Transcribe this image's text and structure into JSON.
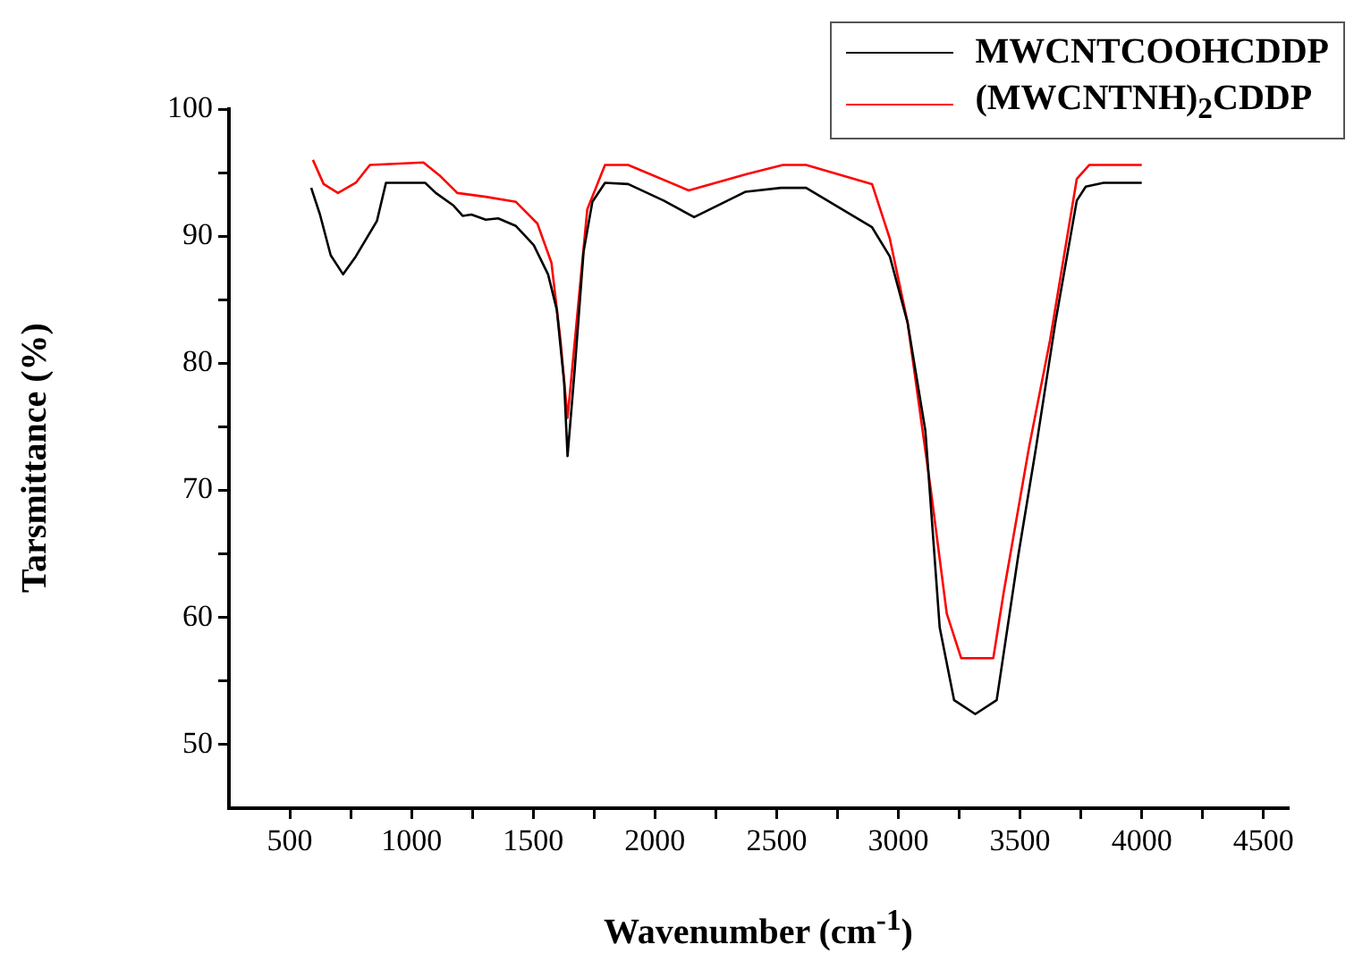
{
  "chart_data": {
    "type": "line",
    "xlabel": "Wavenumber (cm$^{-1}$)",
    "ylabel": "Tarsmittance (%)",
    "series": [
      {
        "name": "MWCNTCOOHCDDP",
        "color": "#000000",
        "x": [
          588,
          624,
          668,
          719,
          771,
          858,
          895,
          1056,
          1100,
          1173,
          1210,
          1246,
          1305,
          1356,
          1429,
          1502,
          1561,
          1597,
          1627,
          1641,
          1670,
          1707,
          1743,
          1795,
          1890,
          2036,
          2161,
          2256,
          2373,
          2518,
          2621,
          2892,
          2965,
          3038,
          3111,
          3170,
          3229,
          3316,
          3404,
          3492,
          3565,
          3645,
          3733,
          3770,
          3843,
          4000
        ],
        "values": [
          93.8,
          91.7,
          88.5,
          87.0,
          88.4,
          91.2,
          94.2,
          94.2,
          93.4,
          92.4,
          91.6,
          91.7,
          91.3,
          91.4,
          90.8,
          89.3,
          87.0,
          84.2,
          78.5,
          72.7,
          79.4,
          88.8,
          92.7,
          94.2,
          94.1,
          92.8,
          91.5,
          92.4,
          93.5,
          93.8,
          93.8,
          90.7,
          88.4,
          83.2,
          74.7,
          59.2,
          53.5,
          52.4,
          53.5,
          64.8,
          73.3,
          83.2,
          92.8,
          93.9,
          94.2,
          94.2
        ]
      },
      {
        "name": "(MWCNTNH)$_{2}$CDDP",
        "color": "#ff0000",
        "x": [
          595,
          639,
          698,
          771,
          829,
          1049,
          1114,
          1188,
          1305,
          1429,
          1517,
          1575,
          1612,
          1641,
          1678,
          1722,
          1795,
          1890,
          2139,
          2380,
          2526,
          2621,
          2892,
          2965,
          3038,
          3133,
          3199,
          3258,
          3390,
          3433,
          3536,
          3623,
          3733,
          3784,
          4000
        ],
        "values": [
          96.0,
          94.1,
          93.4,
          94.2,
          95.6,
          95.8,
          94.8,
          93.4,
          93.1,
          92.7,
          91.0,
          87.9,
          81.8,
          75.7,
          83.2,
          92.1,
          95.6,
          95.6,
          93.6,
          94.9,
          95.6,
          95.6,
          94.1,
          89.8,
          83.2,
          70.1,
          60.3,
          56.8,
          56.8,
          62.0,
          73.3,
          81.8,
          94.5,
          95.6,
          95.6
        ]
      }
    ],
    "xlim": [
      250,
      4600
    ],
    "xticks": [
      500,
      {
        "value": 750,
        "label": null
      },
      1000,
      {
        "value": 1250,
        "label": null
      },
      1500,
      {
        "value": 1750,
        "label": null
      },
      2000,
      {
        "value": 2250,
        "label": null
      },
      2500,
      {
        "value": 2750,
        "label": null
      },
      3000,
      {
        "value": 3250,
        "label": null
      },
      3500,
      {
        "value": 3750,
        "label": null
      },
      4000,
      {
        "value": 4250,
        "label": null
      },
      4500
    ],
    "ylim": [
      45,
      100
    ],
    "yticks": [
      50,
      {
        "value": 55,
        "label": null
      },
      60,
      {
        "value": 65,
        "label": null
      },
      70,
      {
        "value": 75,
        "label": null
      },
      80,
      {
        "value": 85,
        "label": null
      },
      90,
      {
        "value": 95,
        "label": null
      },
      100
    ],
    "grid": false,
    "legend": "top right"
  }
}
